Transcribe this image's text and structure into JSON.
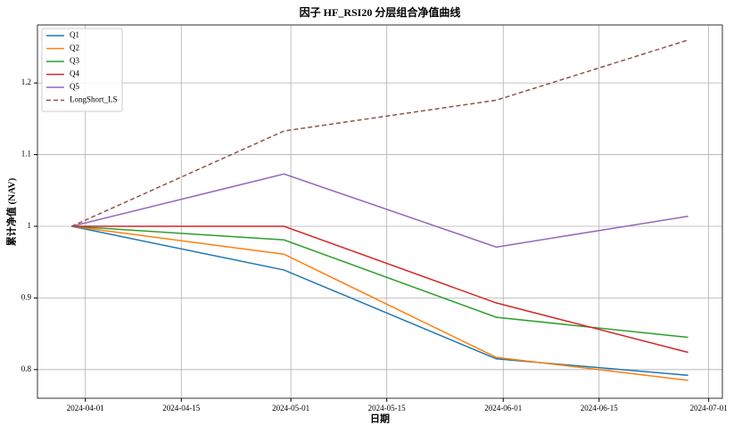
{
  "chart_data": {
    "type": "line",
    "title": "因子 HF_RSI20 分层组合净值曲线",
    "x_label": "日期",
    "y_label": "累计净值 (NAV)",
    "x": [
      "2024-03-30",
      "2024-04-30",
      "2024-05-31",
      "2024-06-28"
    ],
    "series": [
      {
        "name": "Q1",
        "color": "#1f77b4",
        "linestyle": "solid",
        "values": [
          1.0,
          0.939,
          0.815,
          0.792
        ]
      },
      {
        "name": "Q2",
        "color": "#ff7f0e",
        "linestyle": "solid",
        "values": [
          1.0,
          0.961,
          0.817,
          0.785
        ]
      },
      {
        "name": "Q3",
        "color": "#2ca02c",
        "linestyle": "solid",
        "values": [
          1.0,
          0.981,
          0.873,
          0.845
        ]
      },
      {
        "name": "Q4",
        "color": "#d62728",
        "linestyle": "solid",
        "values": [
          1.0,
          1.0,
          0.893,
          0.824
        ]
      },
      {
        "name": "Q5",
        "color": "#9467bd",
        "linestyle": "solid",
        "values": [
          1.0,
          1.073,
          0.971,
          1.014
        ]
      },
      {
        "name": "LongShort_LS",
        "color": "#8c564b",
        "linestyle": "dashed",
        "values": [
          1.0,
          1.133,
          1.176,
          1.26
        ]
      }
    ],
    "xlim": [
      "2024-03-25",
      "2024-07-03"
    ],
    "xticks": [
      "2024-04-01",
      "2024-04-15",
      "2024-05-01",
      "2024-05-15",
      "2024-06-01",
      "2024-06-15",
      "2024-07-01"
    ],
    "ylim": [
      0.76,
      1.281
    ],
    "yticks": [
      0.8,
      0.9,
      1.0,
      1.1,
      1.2
    ],
    "grid": true,
    "legend": "upper-left"
  }
}
